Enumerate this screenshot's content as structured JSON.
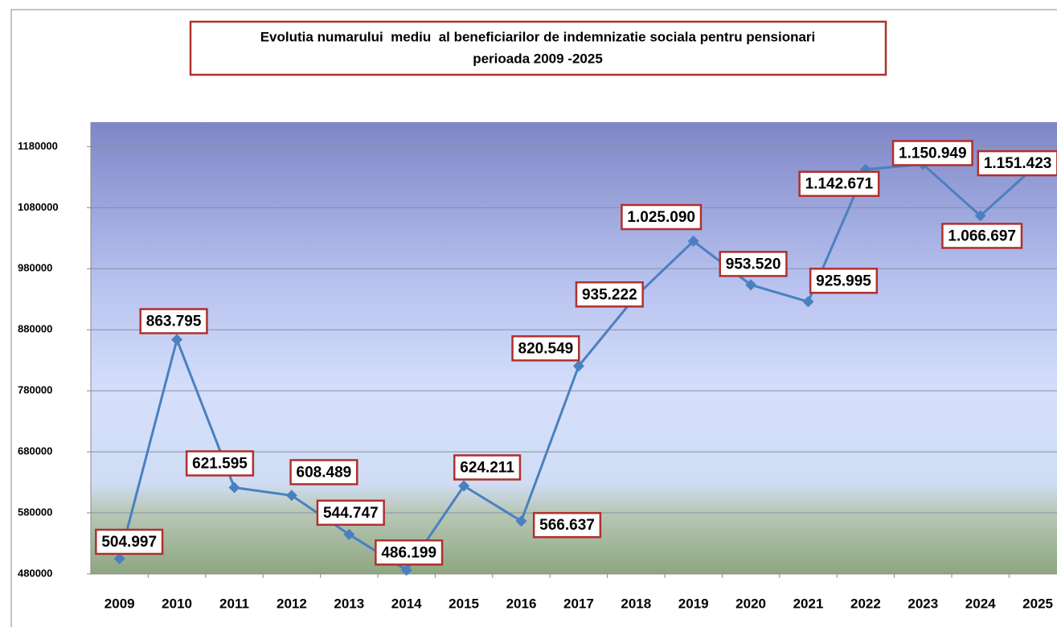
{
  "chart_data": {
    "type": "line",
    "title": "Evolutia numarului  mediu  al beneficiarilor de indemnizatie sociala pentru pensionari",
    "subtitle": "perioada 2009 -2025",
    "categories": [
      "2009",
      "2010",
      "2011",
      "2012",
      "2013",
      "2014",
      "2015",
      "2016",
      "2017",
      "2018",
      "2019",
      "2020",
      "2021",
      "2022",
      "2023",
      "2024",
      "2025"
    ],
    "values": [
      504997,
      863795,
      621595,
      608489,
      544747,
      486199,
      624211,
      566637,
      820549,
      935222,
      1025090,
      953520,
      925995,
      1142671,
      1150949,
      1066697,
      1151423
    ],
    "value_labels": [
      "504.997",
      "863.795",
      "621.595",
      "608.489",
      "544.747",
      "486.199",
      "624.211",
      "566.637",
      "820.549",
      "935.222",
      "1.025.090",
      "953.520",
      "925.995",
      "1.142.671",
      "1.150.949",
      "1.066.697",
      "1.151.423"
    ],
    "color": "#4a80c0",
    "ylim": [
      480000,
      1220000
    ],
    "yticks": [
      480000,
      580000,
      680000,
      780000,
      880000,
      980000,
      1080000,
      1180000
    ],
    "grid": true
  }
}
